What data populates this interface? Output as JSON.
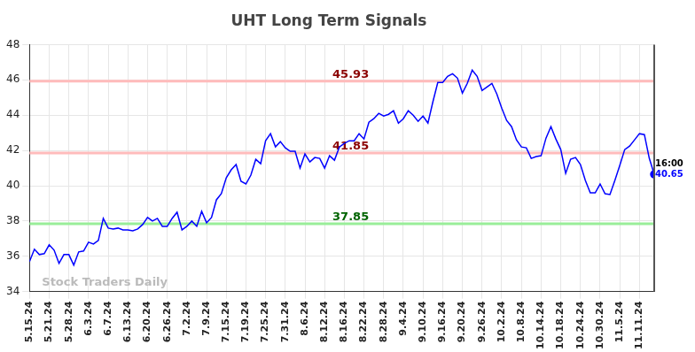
{
  "chart_data": {
    "type": "line",
    "title": "UHT Long Term Signals",
    "categories": [
      "5.15.24",
      null,
      null,
      null,
      "5.21.24",
      null,
      null,
      null,
      "5.28.24",
      null,
      null,
      null,
      "6.3.24",
      null,
      null,
      null,
      "6.7.24",
      null,
      null,
      null,
      "6.13.24",
      null,
      null,
      null,
      "6.20.24",
      null,
      null,
      null,
      "6.26.24",
      null,
      null,
      null,
      "7.2.24",
      null,
      null,
      null,
      "7.9.24",
      null,
      null,
      null,
      "7.15.24",
      null,
      null,
      null,
      "7.19.24",
      null,
      null,
      null,
      "7.25.24",
      null,
      null,
      null,
      "7.31.24",
      null,
      null,
      null,
      "8.6.24",
      null,
      null,
      null,
      "8.12.24",
      null,
      null,
      null,
      "8.16.24",
      null,
      null,
      null,
      "8.22.24",
      null,
      null,
      null,
      "8.28.24",
      null,
      null,
      null,
      "9.4.24",
      null,
      null,
      null,
      "9.10.24",
      null,
      null,
      null,
      "9.16.24",
      null,
      null,
      null,
      "9.20.24",
      null,
      null,
      null,
      "9.26.24",
      null,
      null,
      null,
      "10.2.24",
      null,
      null,
      null,
      "10.8.24",
      null,
      null,
      null,
      "10.14.24",
      null,
      null,
      null,
      "10.18.24",
      null,
      null,
      null,
      "10.24.24",
      null,
      null,
      null,
      "10.30.24",
      null,
      null,
      null,
      "11.5.24",
      null,
      null,
      null,
      "11.11.24",
      null,
      null,
      null
    ],
    "values": [
      35.7,
      36.4,
      36.1,
      36.15,
      36.65,
      36.35,
      35.6,
      36.1,
      36.1,
      35.5,
      36.25,
      36.3,
      36.8,
      36.7,
      36.9,
      38.15,
      37.6,
      37.55,
      37.6,
      37.5,
      37.5,
      37.45,
      37.55,
      37.8,
      38.2,
      38.0,
      38.15,
      37.7,
      37.7,
      38.15,
      38.5,
      37.5,
      37.7,
      38.0,
      37.7,
      38.55,
      37.9,
      38.2,
      39.2,
      39.55,
      40.45,
      40.9,
      41.2,
      40.25,
      40.1,
      40.6,
      41.5,
      41.25,
      42.55,
      42.95,
      42.2,
      42.5,
      42.15,
      41.95,
      41.95,
      41.0,
      41.8,
      41.35,
      41.6,
      41.55,
      41.0,
      41.7,
      41.45,
      42.2,
      42.4,
      42.55,
      42.55,
      42.95,
      42.65,
      43.6,
      43.8,
      44.1,
      43.95,
      44.05,
      44.25,
      43.55,
      43.8,
      44.25,
      44.0,
      43.65,
      43.95,
      43.55,
      44.75,
      45.85,
      45.85,
      46.2,
      46.35,
      46.1,
      45.25,
      45.8,
      46.55,
      46.2,
      45.4,
      45.6,
      45.8,
      45.2,
      44.4,
      43.7,
      43.35,
      42.6,
      42.2,
      42.15,
      41.55,
      41.65,
      41.7,
      42.7,
      43.35,
      42.65,
      42.05,
      40.7,
      41.5,
      41.6,
      41.2,
      40.3,
      39.6,
      39.6,
      40.1,
      39.55,
      39.5,
      40.3,
      41.15,
      42.05,
      42.25,
      42.6,
      42.95,
      42.9,
      41.55,
      40.65
    ],
    "color": "#0000ff",
    "ylim": [
      34,
      48
    ],
    "yticks": [
      34,
      36,
      38,
      40,
      42,
      44,
      46,
      48
    ],
    "grid": true,
    "reference_lines": [
      {
        "value": 45.93,
        "color": "#ffbbbb"
      },
      {
        "value": 41.85,
        "color": "#ffbbbb"
      },
      {
        "value": 37.85,
        "color": "#99ee99"
      }
    ],
    "last_label": {
      "time": "16:00",
      "value": 40.65
    },
    "watermark": "Stock Traders Daily"
  }
}
